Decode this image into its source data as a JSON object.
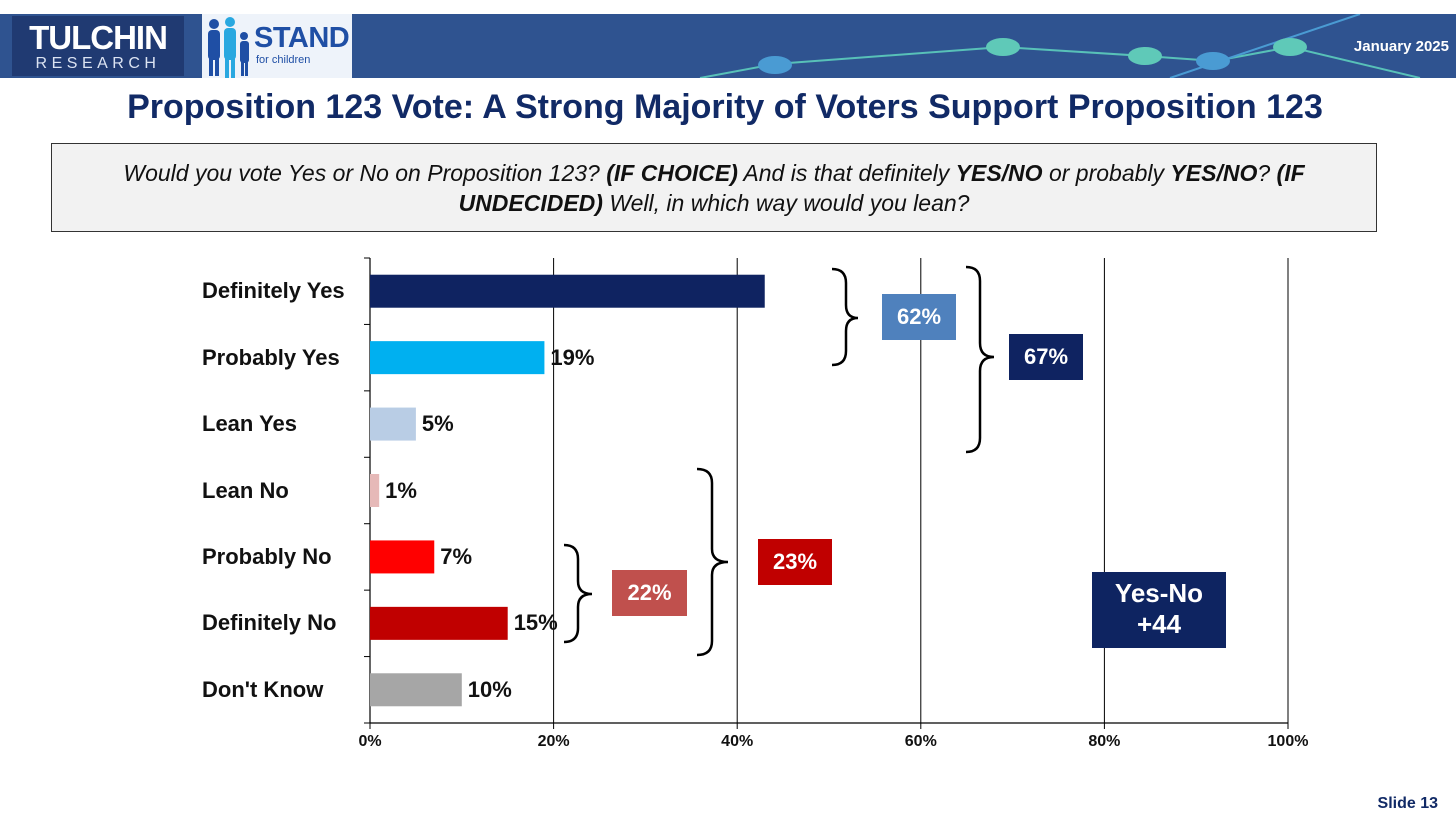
{
  "header": {
    "logo1": {
      "name": "TULCHIN",
      "sub": "RESEARCH"
    },
    "logo2": {
      "name": "STAND",
      "tag": "for children"
    },
    "date": "January 2025"
  },
  "title": "Proposition 123 Vote: A Strong Majority of Voters Support Proposition 123",
  "question": {
    "parts": [
      {
        "text": "Would you vote Yes or No on Proposition 123? ",
        "bold": false
      },
      {
        "text": "(IF CHOICE)",
        "bold": true
      },
      {
        "text": " And is that definitely ",
        "bold": false
      },
      {
        "text": "YES/NO",
        "bold": true
      },
      {
        "text": " or probably ",
        "bold": false
      },
      {
        "text": "YES/NO",
        "bold": true
      },
      {
        "text": "? ",
        "bold": false
      },
      {
        "text": "(IF UNDECIDED)",
        "bold": true
      },
      {
        "text": " Well, in which way would you lean?",
        "bold": false
      }
    ]
  },
  "chart_data": {
    "type": "bar",
    "orientation": "horizontal",
    "categories": [
      "Definitely Yes",
      "Probably Yes",
      "Lean Yes",
      "Lean No",
      "Probably No",
      "Definitely No",
      "Don't Know"
    ],
    "values": [
      43,
      19,
      5,
      1,
      7,
      15,
      10
    ],
    "value_labels": [
      "",
      "19%",
      "5%",
      "1%",
      "7%",
      "15%",
      "10%"
    ],
    "colors": [
      "#0f2361",
      "#00b0f0",
      "#b9cde5",
      "#e6b9b8",
      "#ff0000",
      "#c00000",
      "#a6a6a6"
    ],
    "xlim": [
      0,
      100
    ],
    "x_ticks": [
      "0%",
      "20%",
      "40%",
      "60%",
      "80%",
      "100%"
    ],
    "grid": true,
    "groups": [
      {
        "label": "62%",
        "covers": [
          "Definitely Yes",
          "Probably Yes"
        ],
        "color": "#4f81bd"
      },
      {
        "label": "67%",
        "covers": [
          "Definitely Yes",
          "Probably Yes",
          "Lean Yes"
        ],
        "color": "#0f2361"
      },
      {
        "label": "22%",
        "covers": [
          "Probably No",
          "Definitely No"
        ],
        "color": "#c0504d"
      },
      {
        "label": "23%",
        "covers": [
          "Lean No",
          "Probably No",
          "Definitely No"
        ],
        "color": "#c00000"
      }
    ],
    "net": {
      "line1": "Yes-No",
      "line2": "+44"
    }
  },
  "footer": {
    "slide": "Slide 13"
  }
}
